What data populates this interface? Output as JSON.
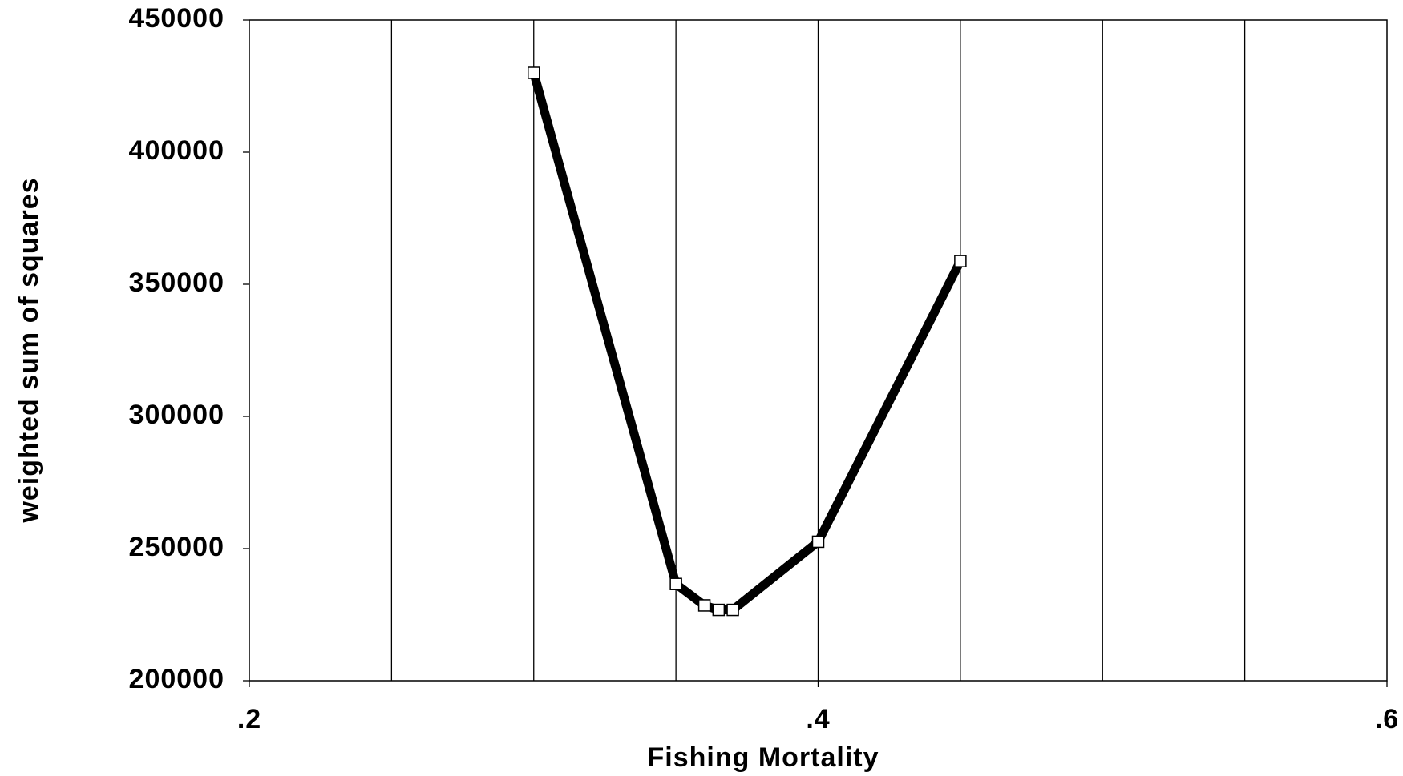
{
  "chart_data": {
    "type": "line",
    "xlabel": "Fishing Mortality",
    "ylabel": "weighted sum of squares",
    "x": [
      0.3,
      0.35,
      0.36,
      0.365,
      0.37,
      0.4,
      0.45
    ],
    "series": [
      {
        "color": "#000000",
        "values": [
          430000,
          236600,
          228500,
          226800,
          226800,
          252600,
          358750
        ]
      }
    ],
    "xlim": [
      0.2,
      0.6
    ],
    "xticks": [
      {
        "value": 0.2,
        "label": ".2"
      },
      {
        "value": 0.4,
        "label": ".4"
      },
      {
        "value": 0.6,
        "label": ".6"
      }
    ],
    "x_gridlines": [
      0.25,
      0.3,
      0.35,
      0.4,
      0.45,
      0.5,
      0.55
    ],
    "ylim": [
      200000,
      450000
    ],
    "yticks": [
      200000,
      250000,
      300000,
      350000,
      400000,
      450000
    ],
    "grid": true,
    "markers": "square"
  }
}
